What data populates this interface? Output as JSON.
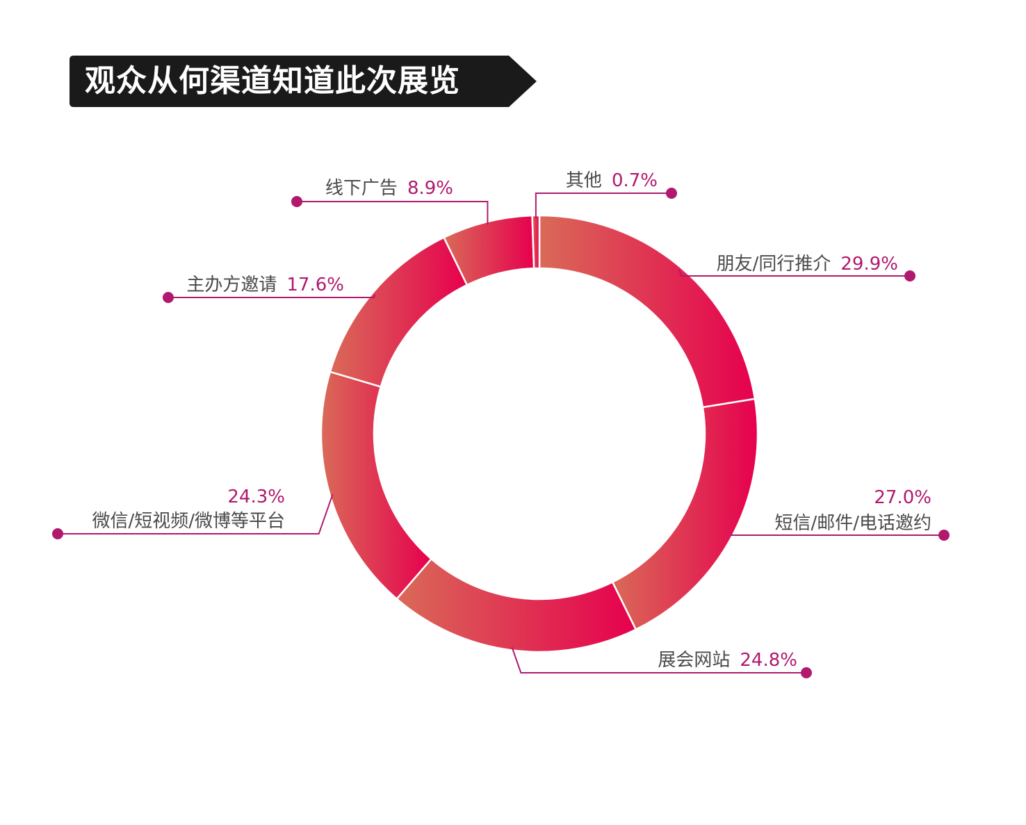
{
  "title": "观众从何渠道知道此次展览",
  "colors": {
    "gradient_start": "#d96a58",
    "gradient_end": "#e6004e",
    "leader": "#b0196d",
    "label": "#4a4a4a",
    "banner": "#1a1a1a"
  },
  "chart_data": {
    "type": "donut",
    "title": "观众从何渠道知道此次展览",
    "slices": [
      {
        "label": "朋友/同行推介",
        "value": 29.9,
        "value_label": "29.9%"
      },
      {
        "label": "短信/邮件/电话邀约",
        "value": 27.0,
        "value_label": "27.0%"
      },
      {
        "label": "展会网站",
        "value": 24.8,
        "value_label": "24.8%"
      },
      {
        "label": "微信/短视频/微博等平台",
        "value": 24.3,
        "value_label": "24.3%"
      },
      {
        "label": "主办方邀请",
        "value": 17.6,
        "value_label": "17.6%"
      },
      {
        "label": "线下广告",
        "value": 8.9,
        "value_label": "8.9%"
      },
      {
        "label": "其他",
        "value": 0.7,
        "value_label": "0.7%"
      }
    ]
  }
}
